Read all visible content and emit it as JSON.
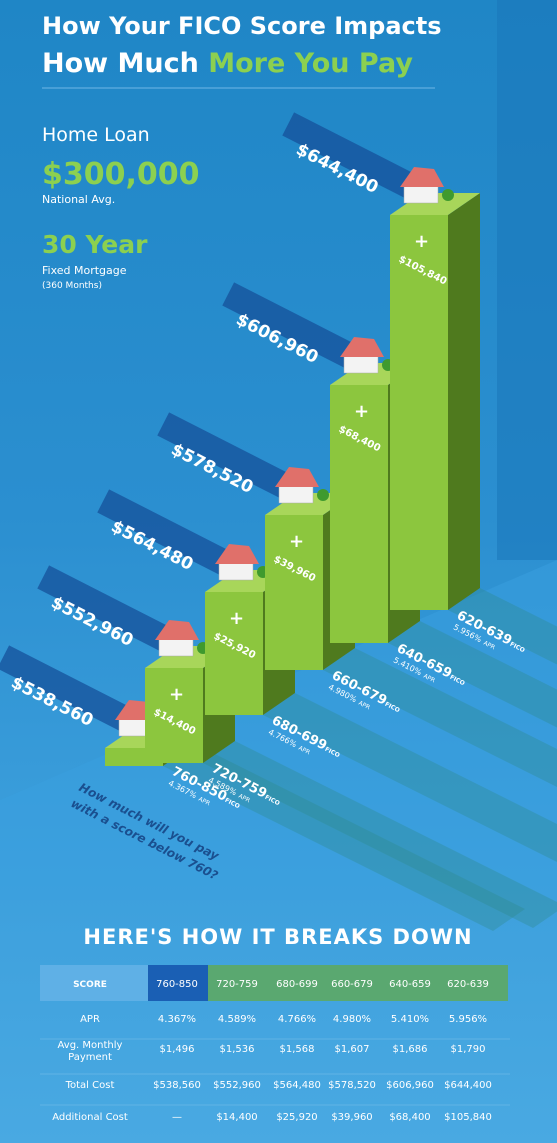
{
  "title": {
    "line1": "How Your FICO Score Impacts",
    "line2a": "How Much",
    "line2b": "More You Pay"
  },
  "loan": {
    "type": "Home Loan",
    "amount": "$300,000",
    "amount_note": "National Avg.",
    "term": "30 Year",
    "term_note": "Fixed Mortgage",
    "term_months": "(360 Months)"
  },
  "fico_label": "FICO",
  "apr_label": "APR",
  "bars": [
    {
      "total": "$538,560",
      "score": "760-850",
      "apr": "4.367%"
    },
    {
      "total": "$552,960",
      "extra": "$14,400",
      "score": "720-759",
      "apr": "4.589%"
    },
    {
      "total": "$564,480",
      "extra": "$25,920",
      "score": "680-699",
      "apr": "4.766%"
    },
    {
      "total": "$578,520",
      "extra": "$39,960",
      "score": "660-679",
      "apr": "4.980%"
    },
    {
      "total": "$606,960",
      "extra": "$68,400",
      "score": "640-659",
      "apr": "5.410%"
    },
    {
      "total": "$644,400",
      "extra": "$105,840",
      "score": "620-639",
      "apr": "5.956%"
    }
  ],
  "question": {
    "line1": "How much will you pay",
    "line2": "with a score below 760?"
  },
  "table": {
    "heading": "HERE'S HOW IT BREAKS DOWN",
    "header": [
      "SCORE",
      "760-850",
      "720-759",
      "680-699",
      "660-679",
      "640-659",
      "620-639"
    ],
    "rows": [
      [
        "APR",
        "4.367%",
        "4.589%",
        "4.766%",
        "4.980%",
        "5.410%",
        "5.956%"
      ],
      [
        "Avg. Monthly Payment",
        "$1,496",
        "$1,536",
        "$1,568",
        "$1,607",
        "$1,686",
        "$1,790"
      ],
      [
        "Total Cost",
        "$538,560",
        "$552,960",
        "$564,480",
        "$578,520",
        "$606,960",
        "$644,400"
      ],
      [
        "Additional Cost",
        "—",
        "$14,400",
        "$25,920",
        "$39,960",
        "$68,400",
        "$105,840"
      ]
    ]
  }
}
